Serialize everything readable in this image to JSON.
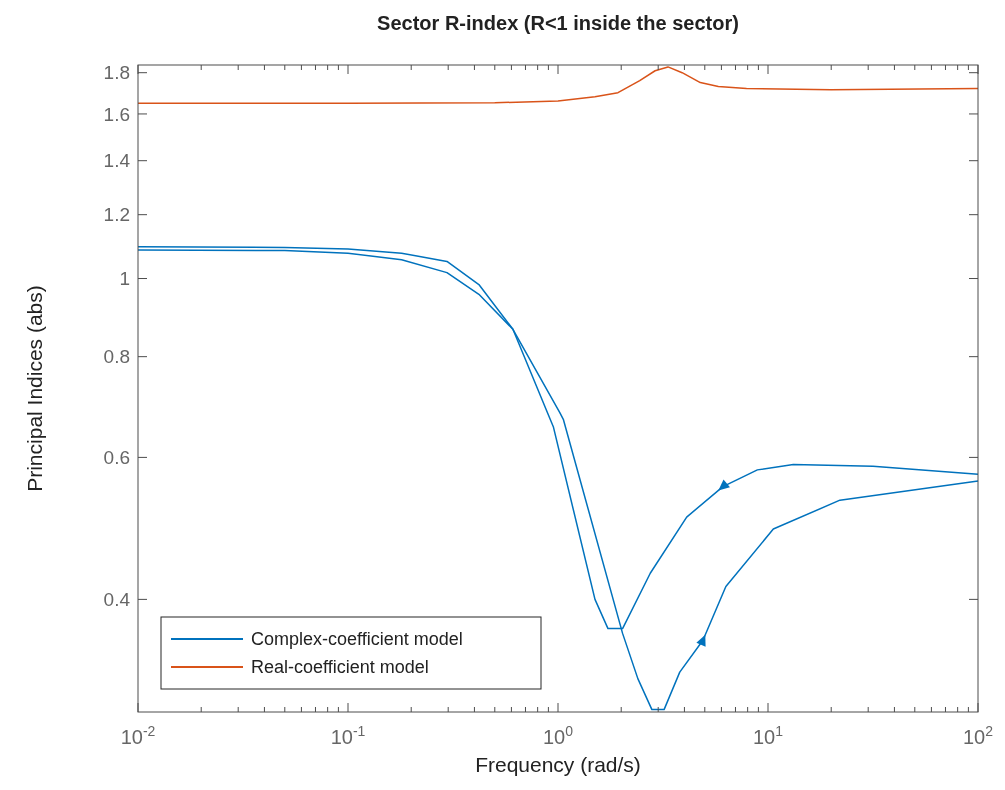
{
  "chart_data": {
    "type": "line",
    "title": "Sector R-index (R<1 inside the sector)",
    "xlabel": "Frequency (rad/s)",
    "ylabel": "Principal Indices (abs)",
    "log": "xy",
    "grid": false,
    "legend": "bottom left",
    "line_style": "solid",
    "marker": "none",
    "xlim": [
      0.01,
      100
    ],
    "xticks": [
      {
        "value": 0.01,
        "label": "10$^{-2}$"
      },
      {
        "value": 0.1,
        "label": "10$^{-1}$"
      },
      {
        "value": 1,
        "label": "10$^{0}$"
      },
      {
        "value": 10,
        "label": "10$^{1}$"
      },
      {
        "value": 100,
        "label": "10$^{2}$"
      }
    ],
    "ylim": [
      0.29,
      1.84
    ],
    "yticks": [
      0.4,
      0.6,
      0.8,
      1,
      1.2,
      1.4,
      1.6,
      1.8
    ],
    "series": [
      {
        "name": "Complex-coefficient model",
        "color": "#0072bd",
        "x": [
          0.01,
          0.05,
          0.1,
          0.18,
          0.296,
          0.42,
          0.61,
          0.89,
          0.95,
          1.5,
          1.73,
          2.03,
          2.75,
          4.1,
          6.1,
          8.9,
          13.2,
          31.6,
          100
        ],
        "values": [
          1.095,
          1.093,
          1.088,
          1.075,
          1.05,
          0.983,
          0.865,
          0.682,
          0.655,
          0.4,
          0.368,
          0.368,
          0.431,
          0.506,
          0.552,
          0.579,
          0.588,
          0.585,
          0.572
        ]
      },
      {
        "color": "#0072bd",
        "x": [
          0.01,
          0.05,
          0.1,
          0.18,
          0.296,
          0.42,
          0.61,
          1.02,
          1.06,
          2.03,
          2.4,
          2.8,
          3.2,
          3.8,
          4.9,
          6.3,
          10.6,
          22,
          100
        ],
        "values": [
          1.085,
          1.083,
          1.075,
          1.055,
          1.017,
          0.956,
          0.865,
          0.682,
          0.669,
          0.363,
          0.319,
          0.292,
          0.292,
          0.325,
          0.356,
          0.415,
          0.489,
          0.531,
          0.561
        ]
      },
      {
        "name": "Real-coefficient model",
        "color": "#d95319",
        "x": [
          0.01,
          0.1,
          0.5,
          1,
          1.5,
          1.93,
          2.45,
          2.9,
          3.34,
          3.9,
          4.76,
          5.8,
          7.9,
          20,
          100
        ],
        "values": [
          1.65,
          1.65,
          1.652,
          1.66,
          1.68,
          1.7,
          1.76,
          1.81,
          1.83,
          1.8,
          1.75,
          1.73,
          1.72,
          1.715,
          1.72
        ]
      }
    ]
  }
}
